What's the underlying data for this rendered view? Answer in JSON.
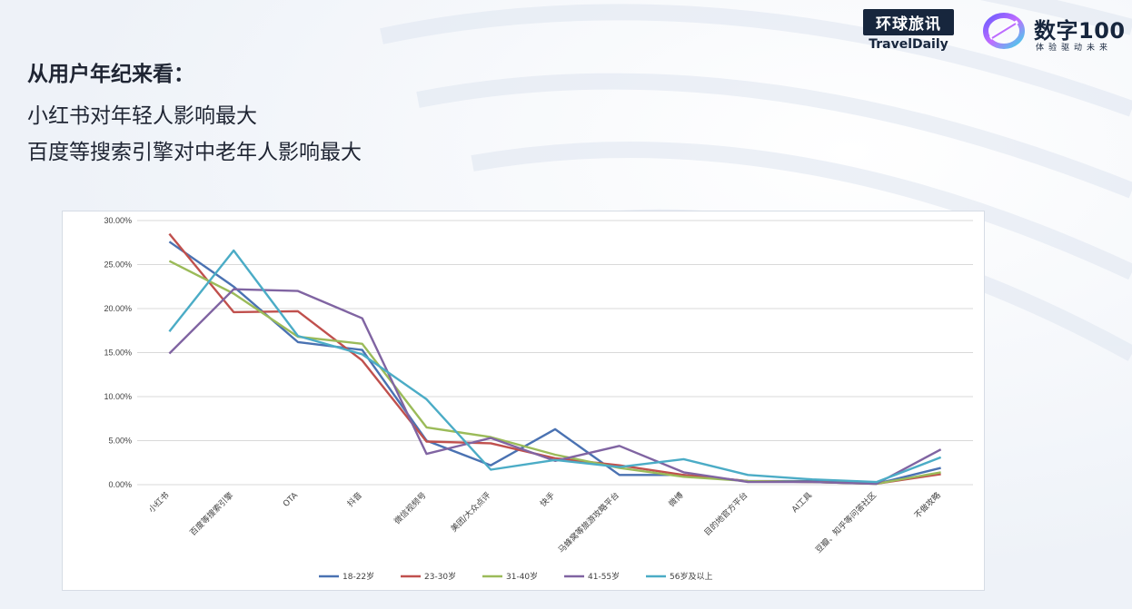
{
  "header": {
    "heading": "从用户年纪来看：",
    "line1": "小红书对年轻人影响最大",
    "line2": "百度等搜索引擎对中老年人影响最大"
  },
  "logos": {
    "travel_cn": "环球旅讯",
    "travel_en": "TravelDaily",
    "digit_name": "数字100",
    "digit_slogan": "体验驱动未来"
  },
  "chart_data": {
    "type": "line",
    "categories": [
      "小红书",
      "百度等搜索引擎",
      "OTA",
      "抖音",
      "微信视频号",
      "美团/大众点评",
      "快手",
      "马蜂窝等旅游攻略平台",
      "微博",
      "目的地官方平台",
      "AI工具",
      "豆瓣、知乎等问答社区",
      "不做攻略"
    ],
    "ylim": [
      0,
      30
    ],
    "yticks": [
      "0.00%",
      "5.00%",
      "10.00%",
      "15.00%",
      "20.00%",
      "25.00%",
      "30.00%"
    ],
    "grid": true,
    "legend_position": "bottom",
    "series": [
      {
        "name": "18-22岁",
        "color": "#4a72b2",
        "values": [
          27.6,
          22.5,
          16.2,
          15.3,
          5.0,
          2.2,
          6.3,
          1.1,
          1.1,
          0.4,
          0.4,
          0.1,
          1.9
        ]
      },
      {
        "name": "23-30岁",
        "color": "#c0504d",
        "values": [
          28.5,
          19.6,
          19.7,
          14.1,
          4.9,
          4.7,
          3.0,
          2.2,
          1.1,
          0.4,
          0.3,
          0.1,
          1.2
        ]
      },
      {
        "name": "31-40岁",
        "color": "#9bbb59",
        "values": [
          25.4,
          21.7,
          16.8,
          16.0,
          6.5,
          5.4,
          3.4,
          1.9,
          0.9,
          0.4,
          0.3,
          0.1,
          1.4
        ]
      },
      {
        "name": "41-55岁",
        "color": "#8064a2",
        "values": [
          14.9,
          22.2,
          22.0,
          18.9,
          3.5,
          5.3,
          2.7,
          4.4,
          1.4,
          0.3,
          0.3,
          0.1,
          4.0
        ]
      },
      {
        "name": "56岁及以上",
        "color": "#4bacc6",
        "values": [
          17.4,
          26.6,
          16.9,
          14.8,
          9.7,
          1.7,
          2.8,
          2.0,
          2.9,
          1.1,
          0.6,
          0.3,
          3.1
        ]
      }
    ]
  }
}
